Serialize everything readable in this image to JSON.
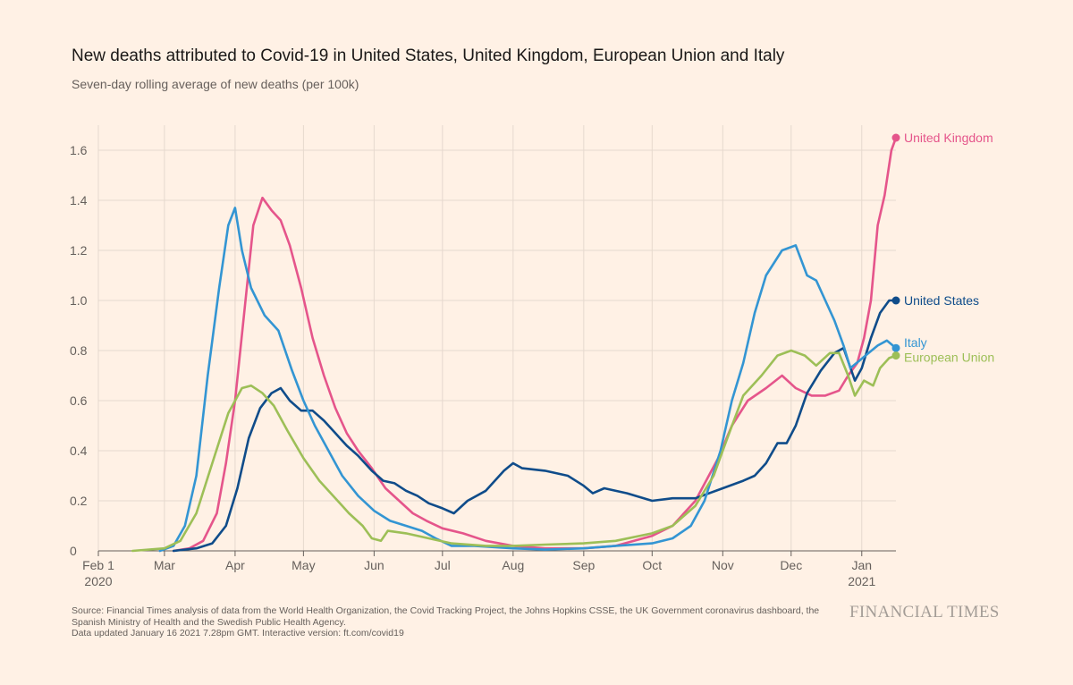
{
  "header": {
    "title": "New deaths attributed to Covid-19 in United States, United Kingdom, European Union and Italy",
    "subtitle": "Seven-day rolling average of new deaths (per 100k)"
  },
  "footer": {
    "source_line1": "Source: Financial Times analysis of data from the World Health Organization, the Covid Tracking Project, the Johns Hopkins CSSE, the UK Government coronavirus dashboard, the",
    "source_line2": "Spanish Ministry of Health and the Swedish Public Health Agency.",
    "updated": "Data updated January 16 2021 7.28pm GMT. Interactive version: ft.com/covid19",
    "brand": "FINANCIAL TIMES"
  },
  "chart_data": {
    "type": "line",
    "title": "New deaths attributed to Covid-19 in United States, United Kingdom, European Union and Italy",
    "subtitle": "Seven-day rolling average of new deaths (per 100k)",
    "xlabel": "",
    "ylabel": "",
    "xlim": [
      "2020-02-01",
      "2021-01-16"
    ],
    "ylim": [
      0,
      1.7
    ],
    "yticks": [
      0,
      0.2,
      0.4,
      0.6,
      0.8,
      1.0,
      1.2,
      1.4,
      1.6
    ],
    "ytick_labels": [
      "0",
      "0.2",
      "0.4",
      "0.6",
      "0.8",
      "1.0",
      "1.2",
      "1.4",
      "1.6"
    ],
    "xticks": [
      {
        "date": "2020-02-01",
        "label": "Feb 1",
        "sublabel": "2020"
      },
      {
        "date": "2020-03-01",
        "label": "Mar"
      },
      {
        "date": "2020-04-01",
        "label": "Apr"
      },
      {
        "date": "2020-05-01",
        "label": "May"
      },
      {
        "date": "2020-06-01",
        "label": "Jun"
      },
      {
        "date": "2020-07-01",
        "label": "Jul"
      },
      {
        "date": "2020-08-01",
        "label": "Aug"
      },
      {
        "date": "2020-09-01",
        "label": "Sep"
      },
      {
        "date": "2020-10-01",
        "label": "Oct"
      },
      {
        "date": "2020-11-01",
        "label": "Nov"
      },
      {
        "date": "2020-12-01",
        "label": "Dec"
      },
      {
        "date": "2021-01-01",
        "label": "Jan",
        "sublabel": "2021"
      }
    ],
    "grid": true,
    "legend": "end-of-line labels",
    "colors": {
      "united_kingdom": "#e5558b",
      "united_states": "#0f4c8a",
      "italy": "#3395d3",
      "european_union": "#9dbf57",
      "axis": "#66605c",
      "grid": "#e6d9ce",
      "background": "#fff1e5"
    },
    "series": [
      {
        "name": "United Kingdom",
        "color": "#e5558b",
        "points": [
          [
            "2020-03-05",
            0
          ],
          [
            "2020-03-12",
            0.01
          ],
          [
            "2020-03-18",
            0.04
          ],
          [
            "2020-03-24",
            0.15
          ],
          [
            "2020-03-28",
            0.35
          ],
          [
            "2020-04-01",
            0.6
          ],
          [
            "2020-04-05",
            0.95
          ],
          [
            "2020-04-09",
            1.3
          ],
          [
            "2020-04-13",
            1.41
          ],
          [
            "2020-04-17",
            1.36
          ],
          [
            "2020-04-21",
            1.32
          ],
          [
            "2020-04-25",
            1.22
          ],
          [
            "2020-04-30",
            1.05
          ],
          [
            "2020-05-05",
            0.85
          ],
          [
            "2020-05-10",
            0.7
          ],
          [
            "2020-05-15",
            0.57
          ],
          [
            "2020-05-20",
            0.47
          ],
          [
            "2020-05-25",
            0.4
          ],
          [
            "2020-05-31",
            0.33
          ],
          [
            "2020-06-06",
            0.25
          ],
          [
            "2020-06-12",
            0.2
          ],
          [
            "2020-06-18",
            0.15
          ],
          [
            "2020-06-24",
            0.12
          ],
          [
            "2020-07-01",
            0.09
          ],
          [
            "2020-07-10",
            0.07
          ],
          [
            "2020-07-20",
            0.04
          ],
          [
            "2020-08-01",
            0.02
          ],
          [
            "2020-08-15",
            0.01
          ],
          [
            "2020-09-01",
            0.01
          ],
          [
            "2020-09-15",
            0.02
          ],
          [
            "2020-10-01",
            0.06
          ],
          [
            "2020-10-10",
            0.1
          ],
          [
            "2020-10-20",
            0.2
          ],
          [
            "2020-10-30",
            0.37
          ],
          [
            "2020-11-05",
            0.5
          ],
          [
            "2020-11-12",
            0.6
          ],
          [
            "2020-11-20",
            0.65
          ],
          [
            "2020-11-27",
            0.7
          ],
          [
            "2020-12-03",
            0.65
          ],
          [
            "2020-12-10",
            0.62
          ],
          [
            "2020-12-16",
            0.62
          ],
          [
            "2020-12-22",
            0.64
          ],
          [
            "2020-12-26",
            0.7
          ],
          [
            "2020-12-30",
            0.75
          ],
          [
            "2021-01-02",
            0.85
          ],
          [
            "2021-01-05",
            1.0
          ],
          [
            "2021-01-08",
            1.3
          ],
          [
            "2021-01-11",
            1.42
          ],
          [
            "2021-01-14",
            1.6
          ],
          [
            "2021-01-16",
            1.65
          ]
        ]
      },
      {
        "name": "United States",
        "color": "#0f4c8a",
        "points": [
          [
            "2020-03-05",
            0
          ],
          [
            "2020-03-15",
            0.01
          ],
          [
            "2020-03-22",
            0.03
          ],
          [
            "2020-03-28",
            0.1
          ],
          [
            "2020-04-02",
            0.25
          ],
          [
            "2020-04-07",
            0.45
          ],
          [
            "2020-04-12",
            0.57
          ],
          [
            "2020-04-17",
            0.63
          ],
          [
            "2020-04-21",
            0.65
          ],
          [
            "2020-04-25",
            0.6
          ],
          [
            "2020-04-30",
            0.56
          ],
          [
            "2020-05-05",
            0.56
          ],
          [
            "2020-05-10",
            0.52
          ],
          [
            "2020-05-15",
            0.47
          ],
          [
            "2020-05-20",
            0.42
          ],
          [
            "2020-05-25",
            0.38
          ],
          [
            "2020-05-31",
            0.32
          ],
          [
            "2020-06-05",
            0.28
          ],
          [
            "2020-06-10",
            0.27
          ],
          [
            "2020-06-15",
            0.24
          ],
          [
            "2020-06-20",
            0.22
          ],
          [
            "2020-06-25",
            0.19
          ],
          [
            "2020-07-01",
            0.17
          ],
          [
            "2020-07-06",
            0.15
          ],
          [
            "2020-07-12",
            0.2
          ],
          [
            "2020-07-20",
            0.24
          ],
          [
            "2020-07-28",
            0.32
          ],
          [
            "2020-08-01",
            0.35
          ],
          [
            "2020-08-05",
            0.33
          ],
          [
            "2020-08-15",
            0.32
          ],
          [
            "2020-08-25",
            0.3
          ],
          [
            "2020-09-01",
            0.26
          ],
          [
            "2020-09-05",
            0.23
          ],
          [
            "2020-09-10",
            0.25
          ],
          [
            "2020-09-20",
            0.23
          ],
          [
            "2020-10-01",
            0.2
          ],
          [
            "2020-10-10",
            0.21
          ],
          [
            "2020-10-20",
            0.21
          ],
          [
            "2020-11-01",
            0.25
          ],
          [
            "2020-11-10",
            0.28
          ],
          [
            "2020-11-15",
            0.3
          ],
          [
            "2020-11-20",
            0.35
          ],
          [
            "2020-11-25",
            0.43
          ],
          [
            "2020-11-29",
            0.43
          ],
          [
            "2020-12-03",
            0.5
          ],
          [
            "2020-12-08",
            0.63
          ],
          [
            "2020-12-14",
            0.72
          ],
          [
            "2020-12-20",
            0.79
          ],
          [
            "2020-12-24",
            0.81
          ],
          [
            "2020-12-29",
            0.68
          ],
          [
            "2021-01-01",
            0.73
          ],
          [
            "2021-01-05",
            0.85
          ],
          [
            "2021-01-09",
            0.95
          ],
          [
            "2021-01-13",
            1.0
          ],
          [
            "2021-01-16",
            1.0
          ]
        ]
      },
      {
        "name": "Italy",
        "color": "#3395d3",
        "points": [
          [
            "2020-02-28",
            0
          ],
          [
            "2020-03-05",
            0.02
          ],
          [
            "2020-03-10",
            0.1
          ],
          [
            "2020-03-15",
            0.3
          ],
          [
            "2020-03-20",
            0.7
          ],
          [
            "2020-03-25",
            1.05
          ],
          [
            "2020-03-29",
            1.3
          ],
          [
            "2020-04-01",
            1.37
          ],
          [
            "2020-04-04",
            1.2
          ],
          [
            "2020-04-08",
            1.05
          ],
          [
            "2020-04-14",
            0.94
          ],
          [
            "2020-04-20",
            0.88
          ],
          [
            "2020-04-26",
            0.72
          ],
          [
            "2020-05-01",
            0.6
          ],
          [
            "2020-05-06",
            0.5
          ],
          [
            "2020-05-12",
            0.4
          ],
          [
            "2020-05-18",
            0.3
          ],
          [
            "2020-05-25",
            0.22
          ],
          [
            "2020-06-01",
            0.16
          ],
          [
            "2020-06-08",
            0.12
          ],
          [
            "2020-06-15",
            0.1
          ],
          [
            "2020-06-22",
            0.08
          ],
          [
            "2020-06-28",
            0.05
          ],
          [
            "2020-07-05",
            0.02
          ],
          [
            "2020-07-15",
            0.02
          ],
          [
            "2020-08-01",
            0.01
          ],
          [
            "2020-08-15",
            0.005
          ],
          [
            "2020-09-01",
            0.01
          ],
          [
            "2020-09-15",
            0.02
          ],
          [
            "2020-10-01",
            0.03
          ],
          [
            "2020-10-10",
            0.05
          ],
          [
            "2020-10-18",
            0.1
          ],
          [
            "2020-10-24",
            0.2
          ],
          [
            "2020-10-31",
            0.4
          ],
          [
            "2020-11-05",
            0.6
          ],
          [
            "2020-11-10",
            0.75
          ],
          [
            "2020-11-15",
            0.95
          ],
          [
            "2020-11-20",
            1.1
          ],
          [
            "2020-11-27",
            1.2
          ],
          [
            "2020-12-03",
            1.22
          ],
          [
            "2020-12-08",
            1.1
          ],
          [
            "2020-12-12",
            1.08
          ],
          [
            "2020-12-16",
            1.0
          ],
          [
            "2020-12-20",
            0.92
          ],
          [
            "2020-12-24",
            0.82
          ],
          [
            "2020-12-27",
            0.73
          ],
          [
            "2020-12-31",
            0.76
          ],
          [
            "2021-01-04",
            0.79
          ],
          [
            "2021-01-08",
            0.82
          ],
          [
            "2021-01-12",
            0.84
          ],
          [
            "2021-01-16",
            0.81
          ]
        ]
      },
      {
        "name": "European Union",
        "color": "#9dbf57",
        "points": [
          [
            "2020-02-16",
            0
          ],
          [
            "2020-03-01",
            0.01
          ],
          [
            "2020-03-08",
            0.04
          ],
          [
            "2020-03-15",
            0.15
          ],
          [
            "2020-03-22",
            0.35
          ],
          [
            "2020-03-29",
            0.55
          ],
          [
            "2020-04-04",
            0.65
          ],
          [
            "2020-04-08",
            0.66
          ],
          [
            "2020-04-13",
            0.63
          ],
          [
            "2020-04-18",
            0.58
          ],
          [
            "2020-04-24",
            0.48
          ],
          [
            "2020-05-01",
            0.37
          ],
          [
            "2020-05-08",
            0.28
          ],
          [
            "2020-05-15",
            0.21
          ],
          [
            "2020-05-21",
            0.15
          ],
          [
            "2020-05-27",
            0.1
          ],
          [
            "2020-05-31",
            0.05
          ],
          [
            "2020-06-04",
            0.04
          ],
          [
            "2020-06-07",
            0.08
          ],
          [
            "2020-06-15",
            0.07
          ],
          [
            "2020-06-25",
            0.05
          ],
          [
            "2020-07-05",
            0.03
          ],
          [
            "2020-07-20",
            0.02
          ],
          [
            "2020-08-01",
            0.02
          ],
          [
            "2020-08-15",
            0.025
          ],
          [
            "2020-09-01",
            0.03
          ],
          [
            "2020-09-15",
            0.04
          ],
          [
            "2020-10-01",
            0.07
          ],
          [
            "2020-10-10",
            0.1
          ],
          [
            "2020-10-20",
            0.18
          ],
          [
            "2020-10-28",
            0.3
          ],
          [
            "2020-11-03",
            0.45
          ],
          [
            "2020-11-10",
            0.62
          ],
          [
            "2020-11-18",
            0.7
          ],
          [
            "2020-11-25",
            0.78
          ],
          [
            "2020-12-01",
            0.8
          ],
          [
            "2020-12-07",
            0.78
          ],
          [
            "2020-12-12",
            0.74
          ],
          [
            "2020-12-18",
            0.79
          ],
          [
            "2020-12-22",
            0.79
          ],
          [
            "2020-12-26",
            0.7
          ],
          [
            "2020-12-29",
            0.62
          ],
          [
            "2021-01-02",
            0.68
          ],
          [
            "2021-01-06",
            0.66
          ],
          [
            "2021-01-09",
            0.73
          ],
          [
            "2021-01-13",
            0.77
          ],
          [
            "2021-01-16",
            0.78
          ]
        ]
      }
    ]
  }
}
